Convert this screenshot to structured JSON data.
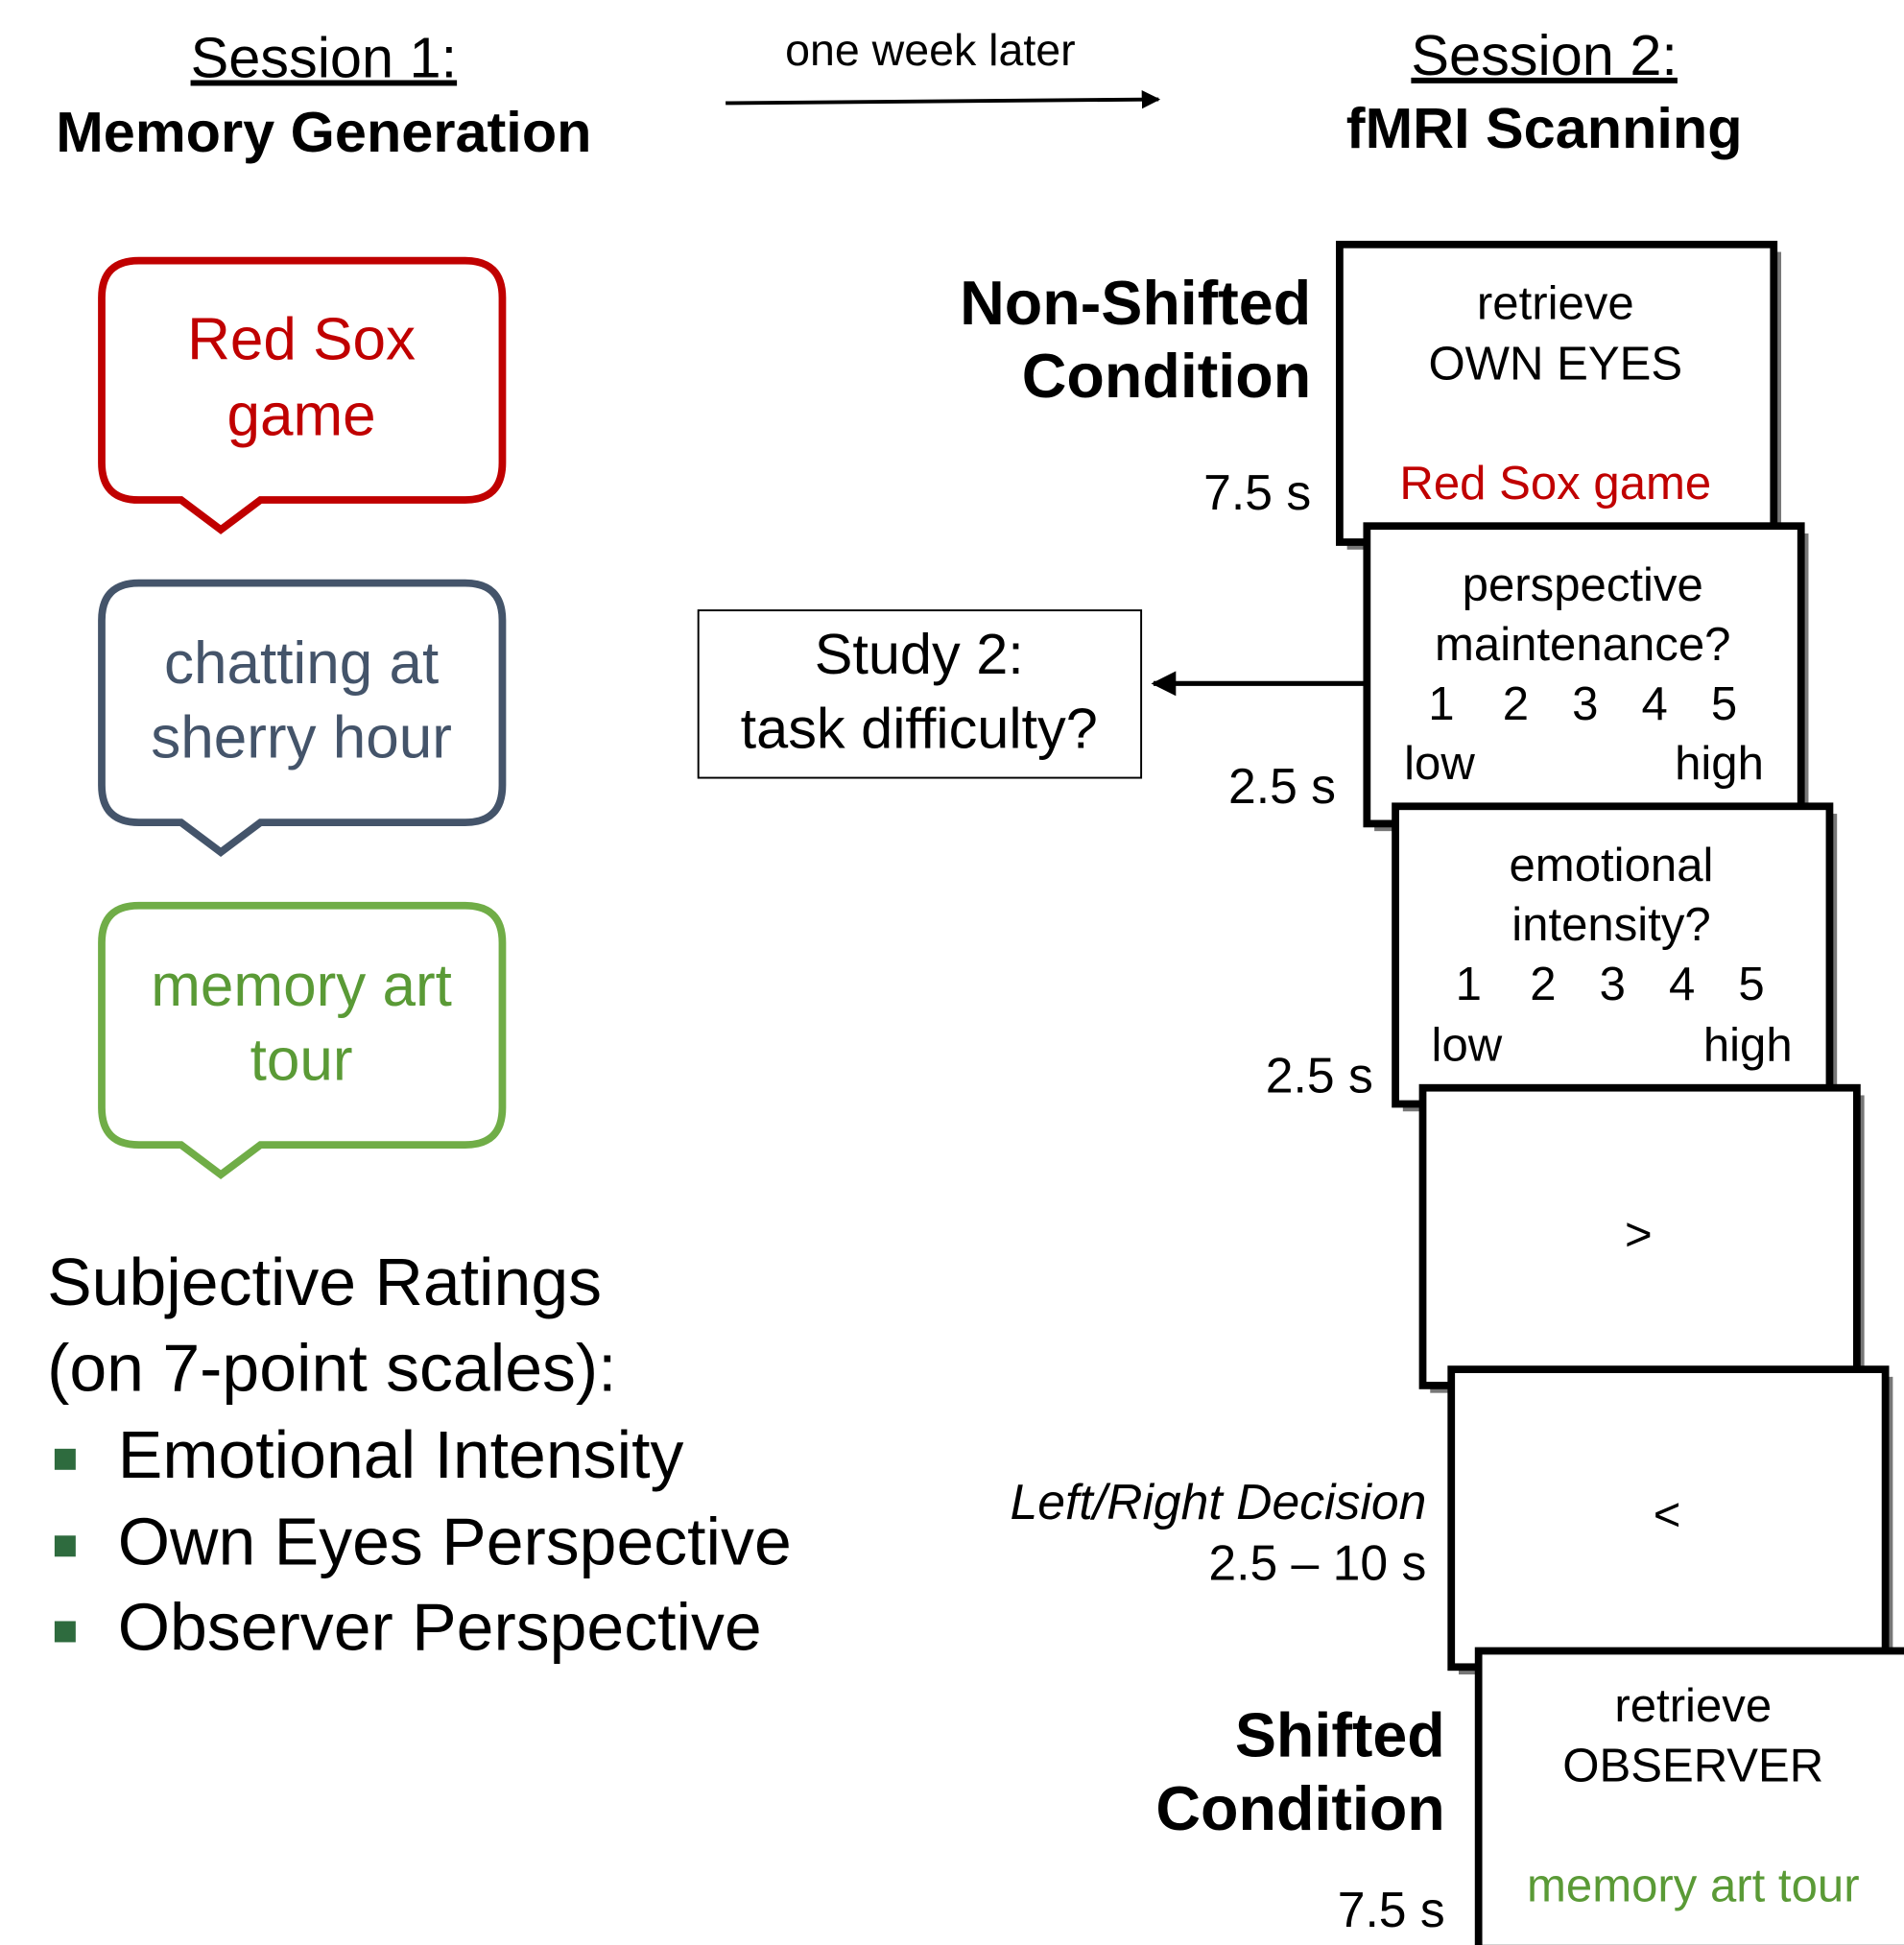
{
  "session1": {
    "title": "Session 1:",
    "subtitle": "Memory Generation"
  },
  "transition": "one week later",
  "session2": {
    "title": "Session 2:",
    "subtitle": "fMRI Scanning"
  },
  "memories": [
    {
      "lines": [
        "Red Sox",
        "game"
      ]
    },
    {
      "lines": [
        "chatting at",
        "sherry hour"
      ]
    },
    {
      "lines": [
        "memory art",
        "tour"
      ]
    }
  ],
  "ratings": {
    "title": [
      "Subjective Ratings",
      "(on 7-point scales):"
    ],
    "items": [
      "Emotional Intensity",
      "Own Eyes Perspective",
      "Observer Perspective"
    ]
  },
  "study2": [
    "Study 2:",
    "task difficulty?"
  ],
  "conditions": {
    "non_shifted": [
      "Non-Shifted",
      "Condition"
    ],
    "shifted": [
      "Shifted",
      "Condition"
    ]
  },
  "screens": {
    "first": {
      "lines": [
        "retrieve",
        "OWN EYES"
      ],
      "memory": "Red Sox game",
      "duration": "7.5 s"
    },
    "perspective": {
      "lines": [
        "perspective",
        "maintenance?"
      ],
      "scale": [
        "1",
        "2",
        "3",
        "4",
        "5"
      ],
      "low": "low",
      "high": "high",
      "duration": "2.5 s"
    },
    "emotion": {
      "lines": [
        "emotional",
        "intensity?"
      ],
      "scale": [
        "1",
        "2",
        "3",
        "4",
        "5"
      ],
      "low": "low",
      "high": "high",
      "duration": "2.5 s"
    },
    "right_arrow": ">",
    "left_arrow": "<",
    "decision": {
      "label": "Left/Right Decision",
      "duration": "2.5 – 10 s"
    },
    "last": {
      "lines": [
        "retrieve",
        "OBSERVER"
      ],
      "memory": "memory art tour",
      "duration": "7.5 s"
    }
  }
}
